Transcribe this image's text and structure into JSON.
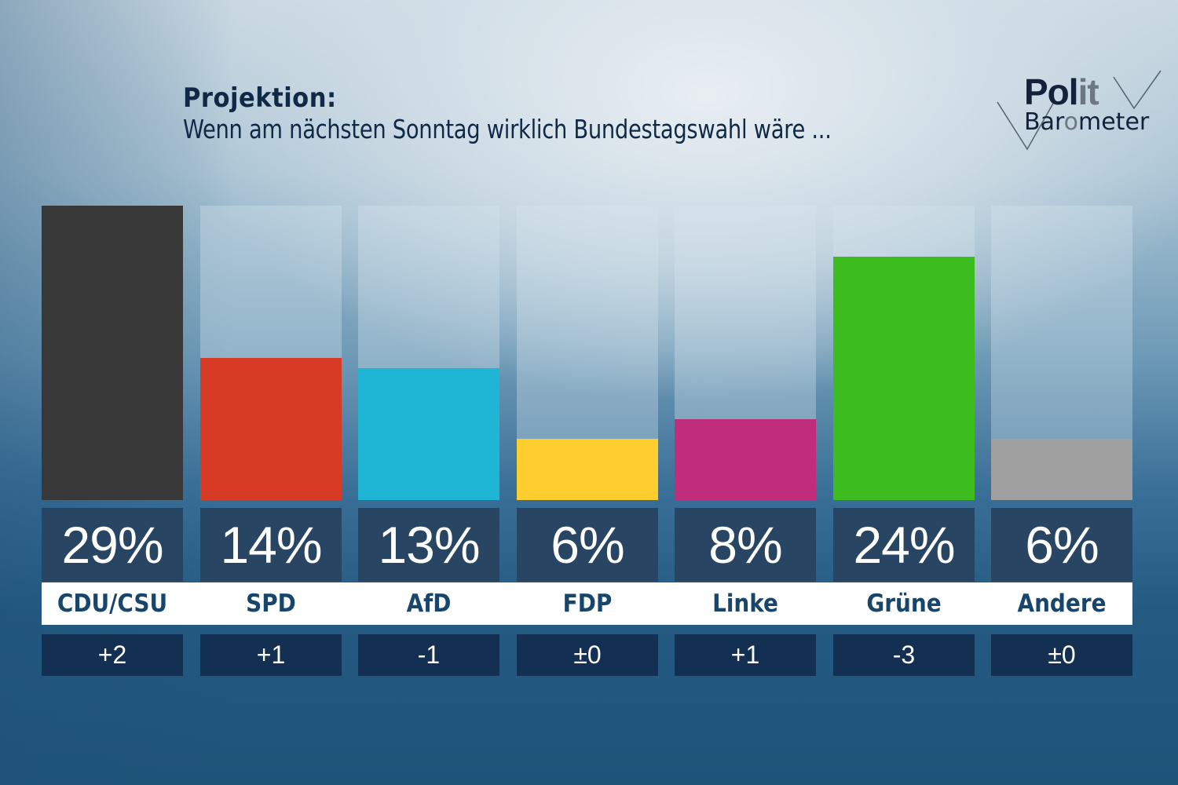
{
  "header": {
    "title": "Projektion:",
    "subtitle": "Wenn am nächsten Sonntag wirklich Bundestagswahl wäre ..."
  },
  "logo": {
    "line1_main": "Pol",
    "line1_accent": "it",
    "line2_pre": "Bar",
    "line2_accent": "o",
    "line2_post": "meter"
  },
  "chart_data": {
    "type": "bar",
    "title": "Projektion: Wenn am nächsten Sonntag wirklich Bundestagswahl wäre ...",
    "xlabel": "",
    "ylabel": "",
    "ylim": [
      0,
      29
    ],
    "grid": false,
    "legend": "none",
    "categories": [
      "CDU/CSU",
      "SPD",
      "AfD",
      "FDP",
      "Linke",
      "Grüne",
      "Andere"
    ],
    "values": [
      29,
      14,
      13,
      6,
      8,
      24,
      6
    ],
    "value_labels": [
      "29%",
      "14%",
      "13%",
      "6%",
      "8%",
      "24%",
      "6%"
    ],
    "changes": [
      "+2",
      "+1",
      "-1",
      "±0",
      "+1",
      "-3",
      "±0"
    ],
    "colors": [
      "#383838",
      "#d73b26",
      "#1fb6d6",
      "#fece30",
      "#c12d7d",
      "#3dbc1f",
      "#a0a0a0"
    ]
  }
}
